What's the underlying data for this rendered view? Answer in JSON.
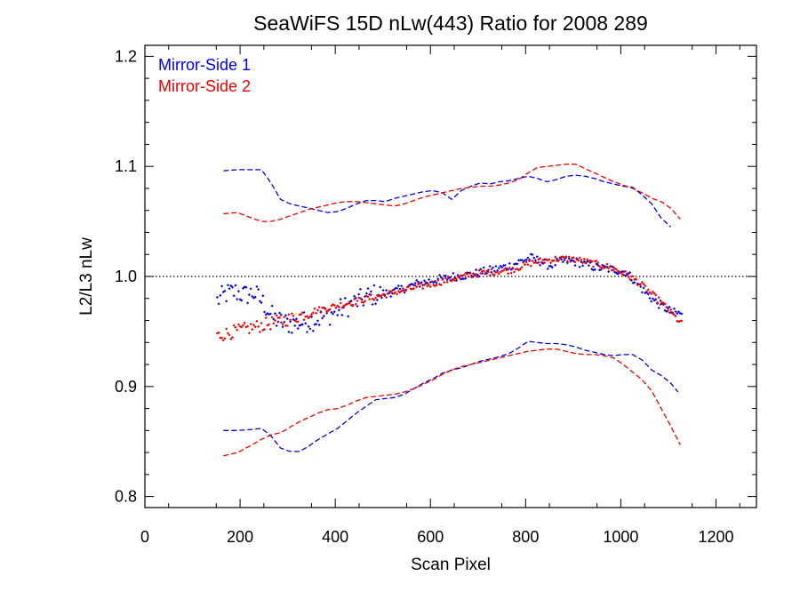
{
  "chart_data": {
    "type": "scatter",
    "title": "SeaWiFS 15D nLw(443) Ratio for 2008 289",
    "xlabel": "Scan Pixel",
    "ylabel": "L2/L3 nLw",
    "xlim": [
      0,
      1285
    ],
    "ylim": [
      0.79,
      1.21
    ],
    "xticks": [
      0,
      200,
      400,
      600,
      800,
      1000,
      1200
    ],
    "yticks": [
      0.8,
      0.9,
      1.0,
      1.1,
      1.2
    ],
    "ytick_labels": [
      "0.8",
      "0.9",
      "1.0",
      "1.1",
      "1.2"
    ],
    "reference_line": 1.0,
    "legend_position": "top-left",
    "colors": {
      "ms1": "#0000ee",
      "ms2": "#ee0000"
    },
    "series": [
      {
        "name": "Mirror-Side 1",
        "color": "#0000ee",
        "mean": {
          "x": [
            152,
            170,
            190,
            210,
            230,
            250,
            270,
            290,
            310,
            330,
            350,
            370,
            390,
            410,
            430,
            450,
            470,
            490,
            510,
            530,
            550,
            570,
            590,
            610,
            630,
            650,
            670,
            690,
            710,
            730,
            750,
            770,
            790,
            810,
            830,
            850,
            870,
            890,
            910,
            930,
            950,
            970,
            990,
            1010,
            1030,
            1050,
            1070,
            1090,
            1110,
            1130
          ],
          "y": [
            0.978,
            0.984,
            0.986,
            0.983,
            0.985,
            0.975,
            0.962,
            0.958,
            0.957,
            0.958,
            0.96,
            0.962,
            0.966,
            0.97,
            0.974,
            0.978,
            0.982,
            0.984,
            0.985,
            0.987,
            0.99,
            0.993,
            0.995,
            0.997,
            0.998,
            1.0,
            1.001,
            1.002,
            1.004,
            1.006,
            1.008,
            1.01,
            1.014,
            1.017,
            1.014,
            1.01,
            1.013,
            1.014,
            1.013,
            1.01,
            1.008,
            1.007,
            1.006,
            1.004,
            0.996,
            0.986,
            0.978,
            0.972,
            0.967,
            0.966
          ]
        },
        "upper": {
          "x": [
            165,
            195,
            225,
            245,
            265,
            285,
            305,
            325,
            345,
            365,
            385,
            405,
            425,
            445,
            465,
            485,
            505,
            525,
            545,
            565,
            585,
            605,
            625,
            645,
            665,
            685,
            705,
            725,
            745,
            765,
            785,
            805,
            825,
            845,
            865,
            885,
            905,
            925,
            945,
            965,
            985,
            1005,
            1025,
            1045,
            1065,
            1085,
            1105
          ],
          "y": [
            1.096,
            1.097,
            1.097,
            1.097,
            1.085,
            1.07,
            1.066,
            1.064,
            1.062,
            1.06,
            1.058,
            1.059,
            1.062,
            1.066,
            1.069,
            1.069,
            1.068,
            1.071,
            1.073,
            1.075,
            1.077,
            1.078,
            1.076,
            1.07,
            1.078,
            1.082,
            1.085,
            1.084,
            1.086,
            1.087,
            1.089,
            1.091,
            1.089,
            1.086,
            1.088,
            1.091,
            1.092,
            1.091,
            1.089,
            1.086,
            1.084,
            1.082,
            1.081,
            1.074,
            1.066,
            1.053,
            1.045
          ]
        },
        "lower": {
          "x": [
            165,
            195,
            225,
            245,
            265,
            285,
            305,
            325,
            345,
            365,
            385,
            405,
            425,
            445,
            465,
            485,
            505,
            525,
            545,
            565,
            585,
            605,
            625,
            645,
            665,
            685,
            705,
            725,
            745,
            765,
            785,
            805,
            825,
            845,
            865,
            885,
            905,
            925,
            945,
            965,
            985,
            1005,
            1025,
            1045,
            1065,
            1085,
            1105,
            1120
          ],
          "y": [
            0.86,
            0.86,
            0.861,
            0.862,
            0.855,
            0.844,
            0.841,
            0.841,
            0.846,
            0.852,
            0.857,
            0.862,
            0.869,
            0.876,
            0.882,
            0.888,
            0.889,
            0.89,
            0.893,
            0.898,
            0.903,
            0.907,
            0.912,
            0.915,
            0.917,
            0.92,
            0.923,
            0.925,
            0.927,
            0.93,
            0.935,
            0.941,
            0.94,
            0.939,
            0.939,
            0.938,
            0.936,
            0.933,
            0.931,
            0.929,
            0.928,
            0.929,
            0.929,
            0.924,
            0.915,
            0.91,
            0.903,
            0.895
          ]
        }
      },
      {
        "name": "Mirror-Side 2",
        "color": "#ee0000",
        "mean": {
          "x": [
            152,
            170,
            190,
            210,
            230,
            250,
            270,
            290,
            310,
            330,
            350,
            370,
            390,
            410,
            430,
            450,
            470,
            490,
            510,
            530,
            550,
            570,
            590,
            610,
            630,
            650,
            670,
            690,
            710,
            730,
            750,
            770,
            790,
            810,
            830,
            850,
            870,
            890,
            910,
            930,
            950,
            970,
            990,
            1010,
            1030,
            1050,
            1070,
            1090,
            1110,
            1130
          ],
          "y": [
            0.946,
            0.948,
            0.95,
            0.952,
            0.954,
            0.956,
            0.958,
            0.96,
            0.962,
            0.965,
            0.968,
            0.97,
            0.972,
            0.974,
            0.976,
            0.978,
            0.98,
            0.982,
            0.984,
            0.986,
            0.988,
            0.99,
            0.992,
            0.994,
            0.996,
            0.998,
            1.0,
            1.002,
            1.003,
            1.004,
            1.005,
            1.006,
            1.009,
            1.012,
            1.014,
            1.015,
            1.016,
            1.016,
            1.015,
            1.013,
            1.011,
            1.009,
            1.006,
            1.002,
            0.997,
            0.99,
            0.982,
            0.974,
            0.965,
            0.956
          ]
        },
        "upper": {
          "x": [
            165,
            195,
            225,
            245,
            265,
            285,
            305,
            325,
            345,
            365,
            385,
            405,
            425,
            445,
            465,
            485,
            505,
            525,
            545,
            565,
            585,
            605,
            625,
            645,
            665,
            685,
            705,
            725,
            745,
            765,
            785,
            805,
            825,
            845,
            865,
            885,
            905,
            925,
            945,
            965,
            985,
            1005,
            1025,
            1045,
            1065,
            1085,
            1105,
            1125
          ],
          "y": [
            1.057,
            1.058,
            1.053,
            1.05,
            1.05,
            1.052,
            1.055,
            1.058,
            1.061,
            1.063,
            1.065,
            1.067,
            1.068,
            1.068,
            1.067,
            1.066,
            1.065,
            1.064,
            1.066,
            1.069,
            1.072,
            1.074,
            1.076,
            1.078,
            1.08,
            1.081,
            1.082,
            1.082,
            1.083,
            1.085,
            1.088,
            1.094,
            1.099,
            1.1,
            1.101,
            1.102,
            1.102,
            1.098,
            1.094,
            1.09,
            1.086,
            1.083,
            1.08,
            1.076,
            1.071,
            1.068,
            1.062,
            1.052
          ]
        },
        "lower": {
          "x": [
            165,
            195,
            225,
            245,
            265,
            285,
            305,
            325,
            345,
            365,
            385,
            405,
            425,
            445,
            465,
            485,
            505,
            525,
            545,
            565,
            585,
            605,
            625,
            645,
            665,
            685,
            705,
            725,
            745,
            765,
            785,
            805,
            825,
            845,
            865,
            885,
            905,
            925,
            945,
            965,
            985,
            1005,
            1025,
            1045,
            1065,
            1085,
            1105,
            1125
          ],
          "y": [
            0.837,
            0.84,
            0.847,
            0.852,
            0.856,
            0.858,
            0.863,
            0.868,
            0.872,
            0.876,
            0.879,
            0.88,
            0.883,
            0.887,
            0.89,
            0.891,
            0.892,
            0.893,
            0.895,
            0.898,
            0.902,
            0.906,
            0.911,
            0.915,
            0.918,
            0.92,
            0.922,
            0.924,
            0.926,
            0.928,
            0.93,
            0.932,
            0.933,
            0.934,
            0.934,
            0.932,
            0.93,
            0.929,
            0.929,
            0.928,
            0.926,
            0.92,
            0.913,
            0.906,
            0.896,
            0.88,
            0.864,
            0.847
          ]
        }
      }
    ]
  }
}
